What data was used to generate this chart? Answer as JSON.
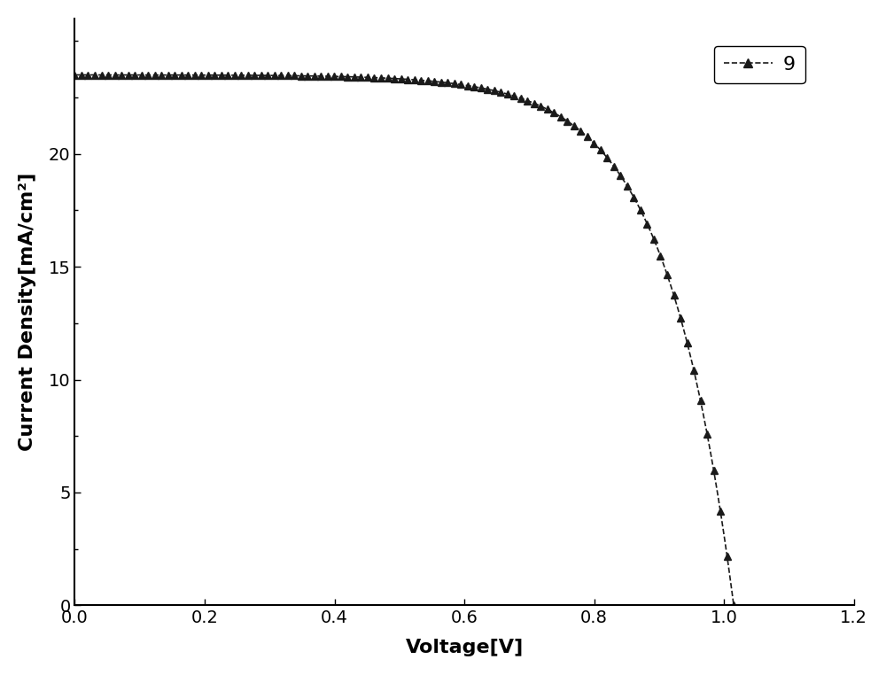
{
  "title": "",
  "xlabel": "Voltage[V]",
  "ylabel": "Current Density[mA/cm²]",
  "legend_label": "9",
  "line_color": "#1a1a1a",
  "marker": "^",
  "linestyle": "--",
  "xlim": [
    0,
    1.2
  ],
  "ylim": [
    0,
    26
  ],
  "xticks": [
    0.0,
    0.2,
    0.4,
    0.6,
    0.8,
    1.0,
    1.2
  ],
  "yticks": [
    0,
    5,
    10,
    15,
    20
  ],
  "background_color": "#ffffff",
  "Jsc": 23.5,
  "Voc": 1.015,
  "a_param": 0.105,
  "n_markers": 100,
  "fig_width": 10.0,
  "fig_height": 7.62
}
